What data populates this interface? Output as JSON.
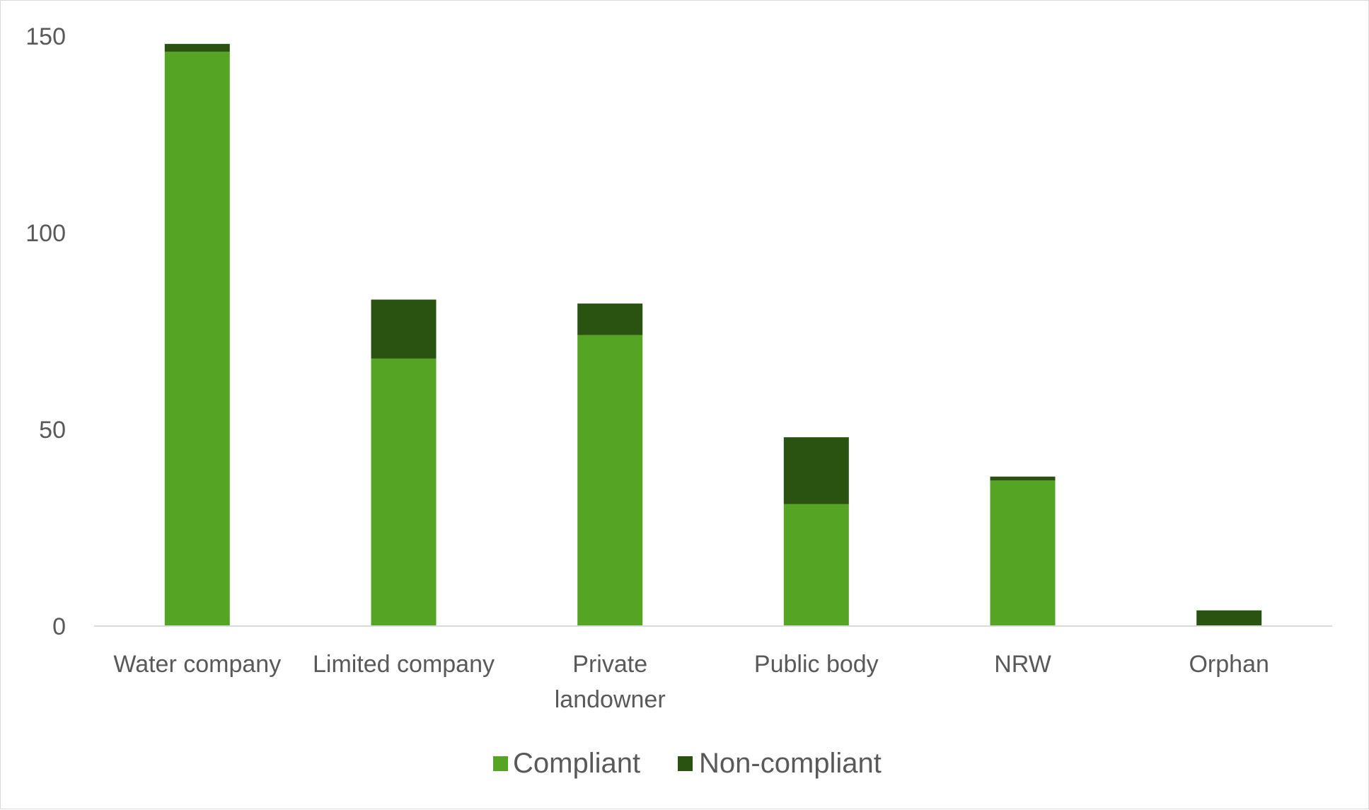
{
  "chart_data": {
    "type": "bar",
    "stacked": true,
    "title": "",
    "xlabel": "",
    "ylabel": "",
    "categories": [
      [
        "Water company"
      ],
      [
        "Limited company"
      ],
      [
        "Private",
        "landowner"
      ],
      [
        "Public body"
      ],
      [
        "NRW"
      ],
      [
        "Orphan"
      ]
    ],
    "series": [
      {
        "name": "Compliant",
        "color": "#55a424",
        "values": [
          146,
          68,
          74,
          31,
          37,
          0
        ]
      },
      {
        "name": "Non-compliant",
        "color": "#2a5211",
        "values": [
          2,
          15,
          8,
          17,
          1,
          4
        ]
      }
    ],
    "ylim": [
      0,
      150
    ],
    "yticks": [
      0,
      50,
      100,
      150
    ],
    "grid": false,
    "legend": "bottom"
  }
}
